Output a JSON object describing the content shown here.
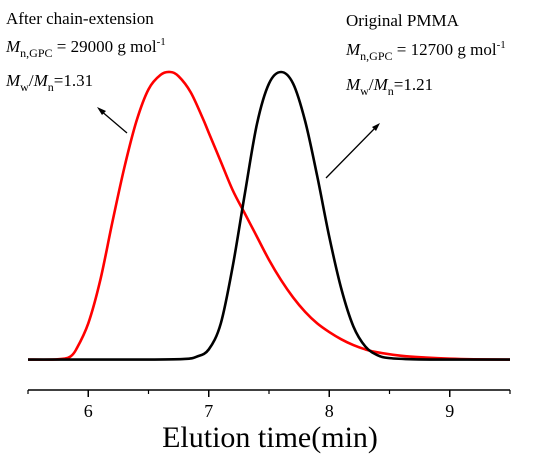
{
  "chart_data": {
    "type": "line",
    "xlabel": "Elution time(min)",
    "ylabel": "",
    "xlim": [
      5.5,
      9.5
    ],
    "ylim": [
      0,
      1.0
    ],
    "x_ticks": [
      "6",
      "7",
      "8",
      "9"
    ],
    "y_axis_visible": false,
    "grid": false,
    "legend": "none",
    "series": [
      {
        "color": "#ff0000",
        "x": [
          5.5,
          5.7,
          5.8,
          5.85,
          5.9,
          6.0,
          6.1,
          6.2,
          6.3,
          6.4,
          6.5,
          6.6,
          6.68,
          6.75,
          6.85,
          6.95,
          7.0,
          7.1,
          7.2,
          7.3,
          7.4,
          7.5,
          7.6,
          7.7,
          7.8,
          7.9,
          8.0,
          8.1,
          8.2,
          8.3,
          8.4,
          8.6,
          8.8,
          9.0,
          9.2,
          9.5
        ],
        "y": [
          0.005,
          0.005,
          0.008,
          0.015,
          0.04,
          0.13,
          0.28,
          0.48,
          0.67,
          0.83,
          0.94,
          0.99,
          1.0,
          0.985,
          0.93,
          0.84,
          0.79,
          0.69,
          0.59,
          0.51,
          0.43,
          0.35,
          0.28,
          0.22,
          0.17,
          0.13,
          0.1,
          0.075,
          0.055,
          0.04,
          0.03,
          0.018,
          0.012,
          0.008,
          0.006,
          0.005
        ]
      },
      {
        "color": "#000000",
        "x": [
          5.5,
          6.0,
          6.5,
          6.8,
          6.9,
          7.0,
          7.1,
          7.2,
          7.3,
          7.4,
          7.5,
          7.6,
          7.7,
          7.8,
          7.9,
          8.0,
          8.1,
          8.2,
          8.3,
          8.4,
          8.5,
          8.7,
          9.0,
          9.5
        ],
        "y": [
          0.005,
          0.005,
          0.005,
          0.007,
          0.015,
          0.04,
          0.13,
          0.33,
          0.58,
          0.82,
          0.96,
          1.0,
          0.96,
          0.83,
          0.64,
          0.43,
          0.25,
          0.12,
          0.05,
          0.02,
          0.01,
          0.006,
          0.005,
          0.005
        ]
      }
    ],
    "annotations": {
      "left": {
        "title": "After chain-extension",
        "mn_symbol": "M",
        "mn_sub": "n,GPC",
        "mn_value": " = 29000 g mol",
        "mn_sup": "-1",
        "pdi_num": "M",
        "pdi_num_sub": "w",
        "pdi_slash": "/",
        "pdi_den": "M",
        "pdi_den_sub": "n",
        "pdi_value": "=1.31"
      },
      "right": {
        "title": "Original PMMA",
        "mn_symbol": "M",
        "mn_sub": "n,GPC",
        "mn_value": " = 12700 g mol",
        "mn_sup": "-1",
        "pdi_num": "M",
        "pdi_num_sub": "w",
        "pdi_slash": "/",
        "pdi_den": "M",
        "pdi_den_sub": "n",
        "pdi_value": "=1.21"
      }
    }
  }
}
